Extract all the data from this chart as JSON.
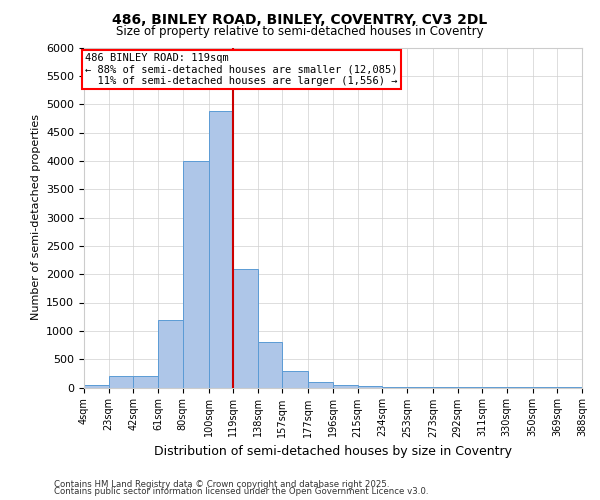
{
  "title": "486, BINLEY ROAD, BINLEY, COVENTRY, CV3 2DL",
  "subtitle": "Size of property relative to semi-detached houses in Coventry",
  "xlabel": "Distribution of semi-detached houses by size in Coventry",
  "ylabel": "Number of semi-detached properties",
  "property_size": 119,
  "property_label": "486 BINLEY ROAD: 119sqm",
  "pct_smaller": 88,
  "count_smaller": 12085,
  "pct_larger": 11,
  "count_larger": 1556,
  "bin_labels": [
    "4sqm",
    "23sqm",
    "42sqm",
    "61sqm",
    "80sqm",
    "100sqm",
    "119sqm",
    "138sqm",
    "157sqm",
    "177sqm",
    "196sqm",
    "215sqm",
    "234sqm",
    "253sqm",
    "273sqm",
    "292sqm",
    "311sqm",
    "330sqm",
    "350sqm",
    "369sqm",
    "388sqm"
  ],
  "bin_edges": [
    4,
    23,
    42,
    61,
    80,
    100,
    119,
    138,
    157,
    177,
    196,
    215,
    234,
    253,
    273,
    292,
    311,
    330,
    350,
    369,
    388
  ],
  "bar_heights": [
    50,
    200,
    200,
    1200,
    4000,
    4880,
    2100,
    800,
    300,
    100,
    50,
    20,
    10,
    10,
    5,
    5,
    5,
    5,
    5,
    5
  ],
  "bar_color": "#aec6e8",
  "bar_edge_color": "#5b9bd5",
  "red_line_color": "#cc0000",
  "grid_color": "#d0d0d0",
  "background_color": "#ffffff",
  "ylim": [
    0,
    6000
  ],
  "yticks": [
    0,
    500,
    1000,
    1500,
    2000,
    2500,
    3000,
    3500,
    4000,
    4500,
    5000,
    5500,
    6000
  ],
  "footnote1": "Contains HM Land Registry data © Crown copyright and database right 2025.",
  "footnote2": "Contains public sector information licensed under the Open Government Licence v3.0."
}
